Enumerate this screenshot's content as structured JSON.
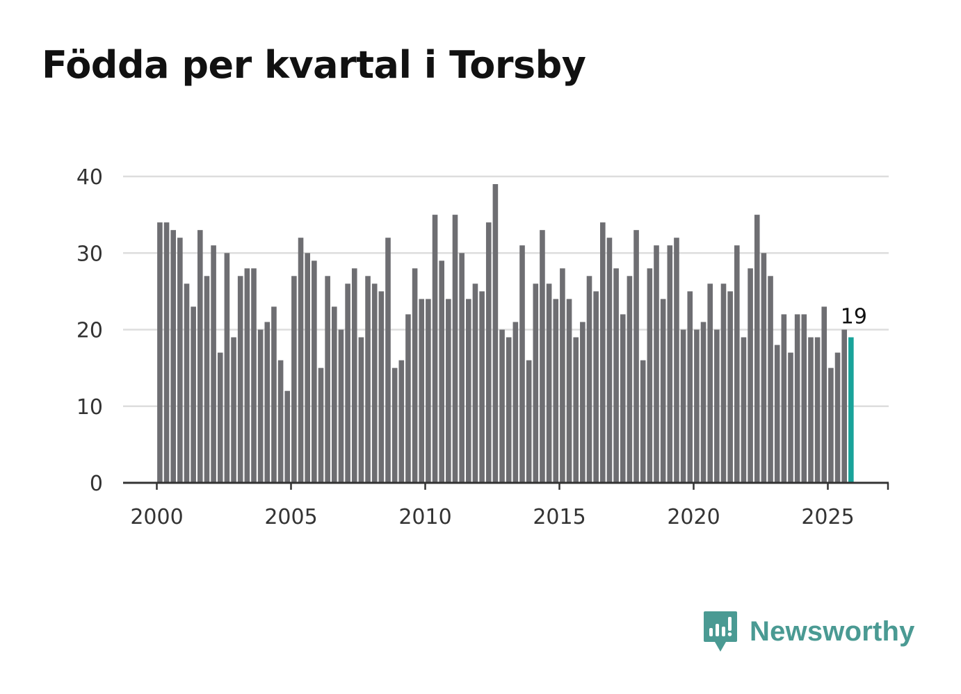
{
  "chart_data": {
    "type": "bar",
    "title": "Födda per kvartal i Torsby",
    "xlabel": "",
    "ylabel": "",
    "ylim": [
      0,
      40
    ],
    "y_ticks": [
      0,
      10,
      20,
      30,
      40
    ],
    "x_ticks": [
      2000,
      2005,
      2010,
      2015,
      2020,
      2025
    ],
    "start_year": 2000,
    "start_quarter": 1,
    "categories": [
      "2000 Q1",
      "2000 Q2",
      "2000 Q3",
      "2000 Q4",
      "2001 Q1",
      "2001 Q2",
      "2001 Q3",
      "2001 Q4",
      "2002 Q1",
      "2002 Q2",
      "2002 Q3",
      "2002 Q4",
      "2003 Q1",
      "2003 Q2",
      "2003 Q3",
      "2003 Q4",
      "2004 Q1",
      "2004 Q2",
      "2004 Q3",
      "2004 Q4",
      "2005 Q1",
      "2005 Q2",
      "2005 Q3",
      "2005 Q4",
      "2006 Q1",
      "2006 Q2",
      "2006 Q3",
      "2006 Q4",
      "2007 Q1",
      "2007 Q2",
      "2007 Q3",
      "2007 Q4",
      "2008 Q1",
      "2008 Q2",
      "2008 Q3",
      "2008 Q4",
      "2009 Q1",
      "2009 Q2",
      "2009 Q3",
      "2009 Q4",
      "2010 Q1",
      "2010 Q2",
      "2010 Q3",
      "2010 Q4",
      "2011 Q1",
      "2011 Q2",
      "2011 Q3",
      "2011 Q4",
      "2012 Q1",
      "2012 Q2",
      "2012 Q3",
      "2012 Q4",
      "2013 Q1",
      "2013 Q2",
      "2013 Q3",
      "2013 Q4",
      "2014 Q1",
      "2014 Q2",
      "2014 Q3",
      "2014 Q4",
      "2015 Q1",
      "2015 Q2",
      "2015 Q3",
      "2015 Q4",
      "2016 Q1",
      "2016 Q2",
      "2016 Q3",
      "2016 Q4",
      "2017 Q1",
      "2017 Q2",
      "2017 Q3",
      "2017 Q4",
      "2018 Q1",
      "2018 Q2",
      "2018 Q3",
      "2018 Q4",
      "2019 Q1",
      "2019 Q2",
      "2019 Q3",
      "2019 Q4",
      "2020 Q1",
      "2020 Q2",
      "2020 Q3",
      "2020 Q4",
      "2021 Q1",
      "2021 Q2",
      "2021 Q3",
      "2021 Q4",
      "2022 Q1",
      "2022 Q2",
      "2022 Q3",
      "2022 Q4",
      "2023 Q1",
      "2023 Q2",
      "2023 Q3",
      "2023 Q4",
      "2024 Q1",
      "2024 Q2",
      "2024 Q3",
      "2024 Q4",
      "2025 Q1",
      "2025 Q2",
      "2025 Q3",
      "2025 Q4"
    ],
    "values": [
      34,
      34,
      33,
      32,
      26,
      23,
      33,
      27,
      31,
      17,
      30,
      19,
      27,
      28,
      28,
      20,
      21,
      23,
      16,
      12,
      27,
      32,
      30,
      29,
      15,
      27,
      23,
      20,
      26,
      28,
      19,
      27,
      26,
      25,
      32,
      15,
      16,
      22,
      28,
      24,
      24,
      35,
      29,
      24,
      35,
      30,
      24,
      26,
      25,
      34,
      39,
      20,
      19,
      21,
      31,
      16,
      26,
      33,
      26,
      24,
      28,
      24,
      19,
      21,
      27,
      25,
      34,
      32,
      28,
      22,
      27,
      33,
      16,
      28,
      31,
      24,
      31,
      32,
      20,
      25,
      20,
      21,
      26,
      20,
      26,
      25,
      31,
      19,
      28,
      35,
      30,
      27,
      18,
      22,
      17,
      22,
      22,
      19,
      19,
      23,
      15,
      17,
      20,
      19
    ],
    "highlight_index": 103,
    "highlight_label": "19",
    "colors": {
      "bar": "#6e6e72",
      "highlight": "#19a39a",
      "grid": "#dddddd",
      "axis": "#333333"
    }
  },
  "brand": {
    "name": "Newsworthy",
    "color": "#4a9a93",
    "icon": "newsworthy-logo-icon"
  }
}
